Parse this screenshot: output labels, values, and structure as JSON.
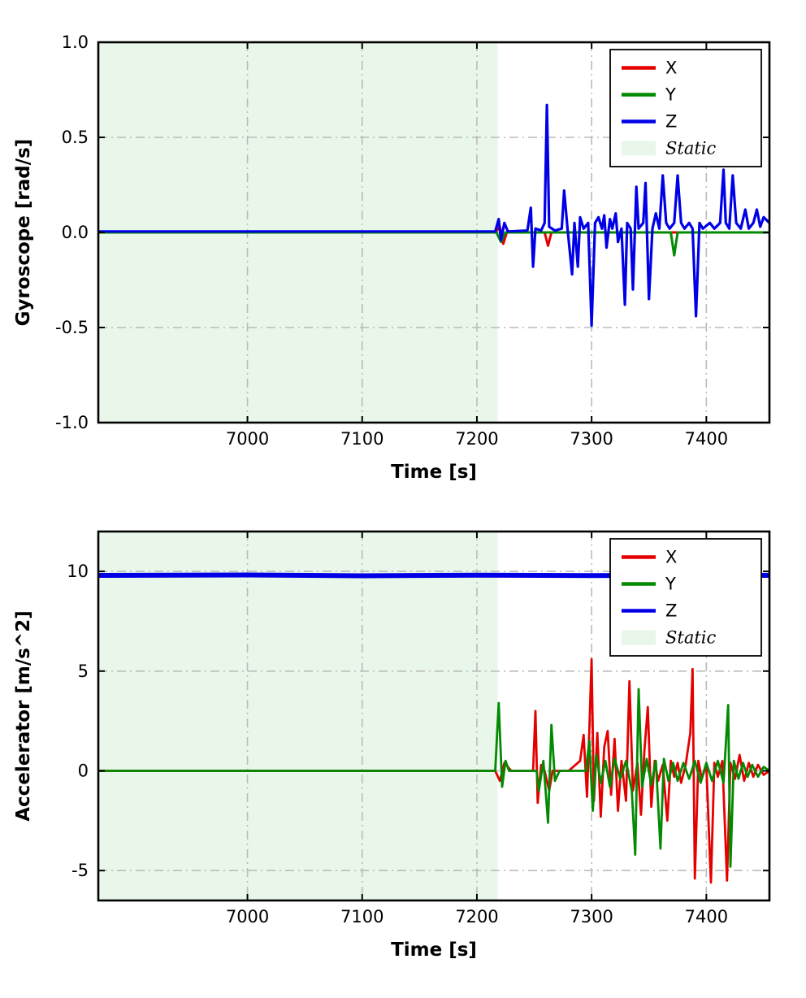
{
  "figure": {
    "background": "#ffffff",
    "grid_color": "#bbbbbb",
    "axis_color": "#000000",
    "static_fill": "#e8f7e9"
  },
  "chart_data": [
    {
      "id": "gyroscope",
      "type": "line",
      "xlabel": "Time [s]",
      "ylabel": "Gyroscope [rad/s]",
      "xlim": [
        6870,
        7455
      ],
      "ylim": [
        -1.0,
        1.0
      ],
      "xticks": [
        7000,
        7100,
        7200,
        7300,
        7400
      ],
      "yticks": [
        -1.0,
        -0.5,
        0.0,
        0.5,
        1.0
      ],
      "ytick_decimals": 1,
      "grid": "dash-dot",
      "legend_position": "upper right",
      "static_region": {
        "label": "Static",
        "x0": 6870,
        "x1": 7218
      },
      "series": [
        {
          "name": "X",
          "color": "#e50000",
          "linewidth": 3,
          "points": [
            [
              6870,
              0
            ],
            [
              7216,
              0
            ],
            [
              7220,
              0.03
            ],
            [
              7223,
              -0.06
            ],
            [
              7226,
              0
            ],
            [
              7259,
              0
            ],
            [
              7262,
              -0.07
            ],
            [
              7265,
              0
            ],
            [
              7455,
              0
            ]
          ]
        },
        {
          "name": "Y",
          "color": "#028a02",
          "linewidth": 3,
          "points": [
            [
              6870,
              0
            ],
            [
              7217,
              0
            ],
            [
              7221,
              -0.05
            ],
            [
              7225,
              0
            ],
            [
              7369,
              0
            ],
            [
              7372,
              -0.12
            ],
            [
              7375,
              0
            ],
            [
              7455,
              0
            ]
          ]
        },
        {
          "name": "Z",
          "color": "#0000e6",
          "linewidth": 3.2,
          "points": [
            [
              6870,
              0.005
            ],
            [
              7216,
              0.005
            ],
            [
              7219,
              0.07
            ],
            [
              7221,
              -0.04
            ],
            [
              7224,
              0.05
            ],
            [
              7227,
              0.005
            ],
            [
              7244,
              0.01
            ],
            [
              7247,
              0.13
            ],
            [
              7249,
              -0.18
            ],
            [
              7251,
              0.02
            ],
            [
              7256,
              0.01
            ],
            [
              7259,
              0.05
            ],
            [
              7261,
              0.67
            ],
            [
              7263,
              0.03
            ],
            [
              7268,
              0.01
            ],
            [
              7274,
              0.02
            ],
            [
              7276,
              0.22
            ],
            [
              7279,
              0.02
            ],
            [
              7283,
              -0.22
            ],
            [
              7285,
              0.05
            ],
            [
              7288,
              -0.18
            ],
            [
              7290,
              0.08
            ],
            [
              7293,
              0.02
            ],
            [
              7297,
              0.05
            ],
            [
              7300,
              -0.49
            ],
            [
              7303,
              0.05
            ],
            [
              7306,
              0.08
            ],
            [
              7309,
              0.02
            ],
            [
              7311,
              0.09
            ],
            [
              7313,
              -0.08
            ],
            [
              7316,
              0.07
            ],
            [
              7318,
              0.02
            ],
            [
              7321,
              0.1
            ],
            [
              7323,
              -0.05
            ],
            [
              7326,
              0.02
            ],
            [
              7329,
              -0.38
            ],
            [
              7331,
              0.05
            ],
            [
              7334,
              0.02
            ],
            [
              7336,
              -0.3
            ],
            [
              7339,
              0.24
            ],
            [
              7341,
              0.02
            ],
            [
              7345,
              0.05
            ],
            [
              7347,
              0.26
            ],
            [
              7350,
              -0.35
            ],
            [
              7353,
              0.02
            ],
            [
              7356,
              0.1
            ],
            [
              7359,
              0.02
            ],
            [
              7362,
              0.3
            ],
            [
              7365,
              0.05
            ],
            [
              7368,
              0.02
            ],
            [
              7372,
              0.05
            ],
            [
              7375,
              0.3
            ],
            [
              7378,
              0.05
            ],
            [
              7381,
              0.02
            ],
            [
              7385,
              0.05
            ],
            [
              7388,
              0.02
            ],
            [
              7391,
              -0.44
            ],
            [
              7394,
              0.05
            ],
            [
              7397,
              0.02
            ],
            [
              7403,
              0.05
            ],
            [
              7407,
              0.02
            ],
            [
              7412,
              0.05
            ],
            [
              7415,
              0.33
            ],
            [
              7417,
              0.05
            ],
            [
              7420,
              0.02
            ],
            [
              7423,
              0.3
            ],
            [
              7426,
              0.05
            ],
            [
              7430,
              0.02
            ],
            [
              7434,
              0.12
            ],
            [
              7437,
              0.02
            ],
            [
              7441,
              0.05
            ],
            [
              7444,
              0.12
            ],
            [
              7447,
              0.03
            ],
            [
              7450,
              0.08
            ],
            [
              7455,
              0.05
            ]
          ]
        }
      ]
    },
    {
      "id": "accelerator",
      "type": "line",
      "xlabel": "Time [s]",
      "ylabel": "Accelerator [m/s^2]",
      "xlim": [
        6870,
        7455
      ],
      "ylim": [
        -6.5,
        12.0
      ],
      "xticks": [
        7000,
        7100,
        7200,
        7300,
        7400
      ],
      "yticks": [
        -5,
        0,
        5,
        10
      ],
      "ytick_decimals": 0,
      "grid": "dash-dot",
      "legend_position": "upper right",
      "static_region": {
        "label": "Static",
        "x0": 6870,
        "x1": 7218
      },
      "series": [
        {
          "name": "X",
          "color": "#e50000",
          "linewidth": 2.8,
          "points": [
            [
              6870,
              0
            ],
            [
              7216,
              0
            ],
            [
              7220,
              -0.5
            ],
            [
              7224,
              0.4
            ],
            [
              7230,
              0
            ],
            [
              7249,
              0
            ],
            [
              7251,
              3.0
            ],
            [
              7253,
              -1.6
            ],
            [
              7256,
              0.3
            ],
            [
              7259,
              0
            ],
            [
              7263,
              -1.0
            ],
            [
              7266,
              0
            ],
            [
              7280,
              0
            ],
            [
              7290,
              0.5
            ],
            [
              7293,
              1.8
            ],
            [
              7296,
              -1.3
            ],
            [
              7298,
              2.0
            ],
            [
              7300,
              5.6
            ],
            [
              7302,
              -1.5
            ],
            [
              7305,
              1.9
            ],
            [
              7308,
              -2.3
            ],
            [
              7311,
              1.2
            ],
            [
              7314,
              2.0
            ],
            [
              7317,
              -1.2
            ],
            [
              7320,
              1.6
            ],
            [
              7323,
              -2.0
            ],
            [
              7326,
              0.5
            ],
            [
              7330,
              -1.5
            ],
            [
              7333,
              4.5
            ],
            [
              7336,
              -1.0
            ],
            [
              7340,
              0.4
            ],
            [
              7343,
              -2.2
            ],
            [
              7346,
              1.0
            ],
            [
              7349,
              3.2
            ],
            [
              7352,
              -1.8
            ],
            [
              7355,
              0.5
            ],
            [
              7358,
              -0.5
            ],
            [
              7362,
              0.3
            ],
            [
              7366,
              -2.5
            ],
            [
              7369,
              0.5
            ],
            [
              7372,
              -0.3
            ],
            [
              7375,
              0.4
            ],
            [
              7378,
              -0.6
            ],
            [
              7382,
              0.3
            ],
            [
              7386,
              1.9
            ],
            [
              7388,
              5.1
            ],
            [
              7390,
              -5.4
            ],
            [
              7393,
              0.5
            ],
            [
              7396,
              -0.4
            ],
            [
              7400,
              0.3
            ],
            [
              7404,
              -5.6
            ],
            [
              7407,
              0.4
            ],
            [
              7410,
              -0.3
            ],
            [
              7414,
              0.5
            ],
            [
              7418,
              -5.5
            ],
            [
              7421,
              0.4
            ],
            [
              7425,
              -0.4
            ],
            [
              7429,
              0.8
            ],
            [
              7433,
              -0.5
            ],
            [
              7437,
              0.4
            ],
            [
              7441,
              -0.3
            ],
            [
              7445,
              0.3
            ],
            [
              7450,
              -0.2
            ],
            [
              7455,
              0
            ]
          ]
        },
        {
          "name": "Y",
          "color": "#028a02",
          "linewidth": 2.8,
          "points": [
            [
              6870,
              0
            ],
            [
              7216,
              0
            ],
            [
              7219,
              3.4
            ],
            [
              7222,
              -0.8
            ],
            [
              7225,
              0.5
            ],
            [
              7228,
              0
            ],
            [
              7252,
              0
            ],
            [
              7254,
              -1.0
            ],
            [
              7258,
              0.5
            ],
            [
              7262,
              -2.6
            ],
            [
              7265,
              2.3
            ],
            [
              7268,
              -0.5
            ],
            [
              7272,
              0
            ],
            [
              7295,
              0
            ],
            [
              7298,
              1.5
            ],
            [
              7301,
              -2.0
            ],
            [
              7304,
              0.8
            ],
            [
              7308,
              -0.6
            ],
            [
              7312,
              0.5
            ],
            [
              7316,
              -0.8
            ],
            [
              7320,
              0.6
            ],
            [
              7325,
              -0.4
            ],
            [
              7330,
              0.5
            ],
            [
              7335,
              -1.0
            ],
            [
              7338,
              -4.2
            ],
            [
              7341,
              4.1
            ],
            [
              7344,
              -0.8
            ],
            [
              7348,
              0.6
            ],
            [
              7352,
              -0.7
            ],
            [
              7356,
              0.5
            ],
            [
              7360,
              -3.9
            ],
            [
              7363,
              0.6
            ],
            [
              7367,
              -0.5
            ],
            [
              7371,
              0.4
            ],
            [
              7375,
              -0.5
            ],
            [
              7380,
              0.4
            ],
            [
              7385,
              -0.4
            ],
            [
              7390,
              0.5
            ],
            [
              7395,
              -0.6
            ],
            [
              7400,
              0.4
            ],
            [
              7405,
              -0.5
            ],
            [
              7410,
              0.5
            ],
            [
              7415,
              -0.6
            ],
            [
              7419,
              3.3
            ],
            [
              7421,
              -4.8
            ],
            [
              7424,
              0.5
            ],
            [
              7428,
              -0.4
            ],
            [
              7432,
              0.4
            ],
            [
              7436,
              -0.3
            ],
            [
              7440,
              0.3
            ],
            [
              7445,
              -0.3
            ],
            [
              7450,
              0.2
            ],
            [
              7455,
              0
            ]
          ]
        },
        {
          "name": "Z",
          "color": "#0000e6",
          "linewidth": 6,
          "points": [
            [
              6870,
              9.8
            ],
            [
              7000,
              9.82
            ],
            [
              7100,
              9.78
            ],
            [
              7200,
              9.81
            ],
            [
              7300,
              9.79
            ],
            [
              7400,
              9.81
            ],
            [
              7455,
              9.8
            ]
          ]
        }
      ]
    }
  ]
}
